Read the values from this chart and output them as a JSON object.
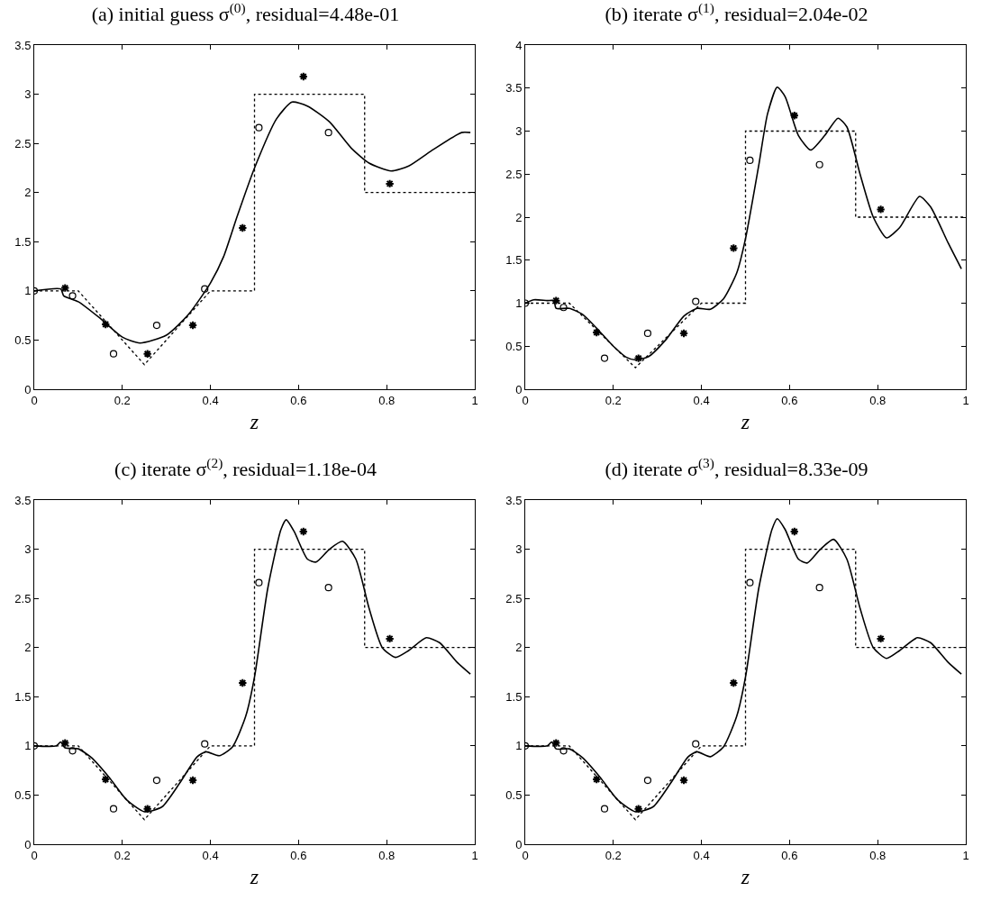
{
  "chart_data": [
    {
      "type": "line",
      "title": "(a) initial guess σ$^{(0)}$, residual=4.48e-01",
      "xlabel": "z",
      "xlim": [
        0,
        1
      ],
      "xticks": [
        0,
        0.2,
        0.4,
        0.6,
        0.8,
        1
      ],
      "ylim": [
        0,
        3.5
      ],
      "yticks": [
        0,
        0.5,
        1,
        1.5,
        2,
        2.5,
        3,
        3.5
      ],
      "grid": false,
      "series": [
        {
          "type": "line",
          "line_style": "dotted",
          "color": "#000000",
          "x": [
            0,
            0.1,
            0.25,
            0.4,
            0.5,
            0.5,
            0.75,
            0.75,
            1
          ],
          "values": [
            1,
            1,
            0.25,
            1,
            1,
            3,
            3,
            2,
            2
          ]
        },
        {
          "type": "line",
          "line_style": "solid",
          "color": "#000000",
          "x": [
            0,
            0.06,
            0.067,
            0.1,
            0.15,
            0.2,
            0.24,
            0.3,
            0.35,
            0.4,
            0.43,
            0.46,
            0.5,
            0.55,
            0.585,
            0.62,
            0.67,
            0.72,
            0.76,
            0.81,
            0.85,
            0.9,
            0.97,
            0.99
          ],
          "values": [
            1.0,
            1.02,
            0.95,
            0.89,
            0.72,
            0.53,
            0.47,
            0.55,
            0.76,
            1.08,
            1.35,
            1.75,
            2.25,
            2.75,
            2.92,
            2.88,
            2.72,
            2.45,
            2.3,
            2.22,
            2.27,
            2.42,
            2.61,
            2.61
          ]
        },
        {
          "type": "scatter",
          "marker": "circle",
          "color": "#000000",
          "x": [
            0,
            0.087,
            0.18,
            0.278,
            0.387,
            0.51,
            0.668
          ],
          "values": [
            1.0,
            0.95,
            0.36,
            0.65,
            1.02,
            2.66,
            2.61
          ]
        },
        {
          "type": "scatter",
          "marker": "cross",
          "color": "#000000",
          "x": [
            0.07,
            0.162,
            0.257,
            0.36,
            0.473,
            0.611,
            0.807
          ],
          "values": [
            1.03,
            0.66,
            0.36,
            0.65,
            1.64,
            3.18,
            2.09
          ]
        }
      ]
    },
    {
      "type": "line",
      "title": "(b) iterate σ$^{(1)}$, residual=2.04e-02",
      "xlabel": "z",
      "xlim": [
        0,
        1
      ],
      "xticks": [
        0,
        0.2,
        0.4,
        0.6,
        0.8,
        1
      ],
      "ylim": [
        0,
        4
      ],
      "yticks": [
        0,
        0.5,
        1,
        1.5,
        2,
        2.5,
        3,
        3.5,
        4
      ],
      "grid": false,
      "series": [
        {
          "type": "scatter",
          "marker": "circle",
          "color": "#000000",
          "x": [
            0,
            0.087,
            0.18,
            0.278,
            0.387,
            0.51,
            0.668
          ],
          "values": [
            1.0,
            0.95,
            0.36,
            0.65,
            1.02,
            2.66,
            2.61
          ]
        },
        {
          "type": "scatter",
          "marker": "cross",
          "color": "#000000",
          "x": [
            0.07,
            0.162,
            0.257,
            0.36,
            0.473,
            0.611,
            0.807
          ],
          "values": [
            1.03,
            0.66,
            0.36,
            0.65,
            1.64,
            3.18,
            2.09
          ]
        },
        {
          "type": "line",
          "line_style": "dotted",
          "color": "#000000",
          "x": [
            0,
            0.1,
            0.25,
            0.4,
            0.5,
            0.5,
            0.75,
            0.75,
            1
          ],
          "values": [
            1,
            1,
            0.25,
            1,
            1,
            3,
            3,
            2,
            2
          ]
        },
        {
          "type": "line",
          "line_style": "solid",
          "color": "#000000",
          "x": [
            0,
            0.02,
            0.05,
            0.065,
            0.07,
            0.1,
            0.13,
            0.16,
            0.2,
            0.23,
            0.25,
            0.28,
            0.32,
            0.36,
            0.39,
            0.42,
            0.45,
            0.48,
            0.5,
            0.53,
            0.55,
            0.572,
            0.59,
            0.62,
            0.648,
            0.68,
            0.71,
            0.73,
            0.76,
            0.79,
            0.82,
            0.85,
            0.895,
            0.92,
            0.96,
            0.99
          ],
          "values": [
            1.0,
            1.04,
            1.03,
            1.03,
            0.94,
            0.94,
            0.87,
            0.72,
            0.5,
            0.37,
            0.34,
            0.38,
            0.58,
            0.85,
            0.94,
            0.93,
            1.05,
            1.35,
            1.75,
            2.6,
            3.2,
            3.51,
            3.4,
            2.95,
            2.78,
            2.95,
            3.15,
            3.05,
            2.5,
            2.0,
            1.76,
            1.88,
            2.24,
            2.12,
            1.7,
            1.4
          ]
        }
      ]
    },
    {
      "type": "line",
      "title": "(c) iterate σ$^{(2)}$, residual=1.18e-04",
      "xlabel": "z",
      "xlim": [
        0,
        1
      ],
      "xticks": [
        0,
        0.2,
        0.4,
        0.6,
        0.8,
        1
      ],
      "ylim": [
        0,
        3.5
      ],
      "yticks": [
        0,
        0.5,
        1,
        1.5,
        2,
        2.5,
        3,
        3.5
      ],
      "grid": false,
      "series": [
        {
          "type": "line",
          "line_style": "dotted",
          "color": "#000000",
          "x": [
            0,
            0.1,
            0.25,
            0.4,
            0.5,
            0.5,
            0.75,
            0.75,
            1
          ],
          "values": [
            1,
            1,
            0.25,
            1,
            1,
            3,
            3,
            2,
            2
          ]
        },
        {
          "type": "line",
          "line_style": "solid",
          "color": "#000000",
          "x": [
            0,
            0.05,
            0.06,
            0.07,
            0.1,
            0.13,
            0.17,
            0.21,
            0.25,
            0.29,
            0.33,
            0.37,
            0.39,
            0.42,
            0.45,
            0.48,
            0.5,
            0.53,
            0.56,
            0.572,
            0.59,
            0.62,
            0.64,
            0.67,
            0.7,
            0.73,
            0.76,
            0.79,
            0.82,
            0.85,
            0.89,
            0.92,
            0.96,
            0.99
          ],
          "values": [
            1.0,
            1.0,
            1.04,
            0.98,
            0.97,
            0.88,
            0.68,
            0.45,
            0.33,
            0.38,
            0.62,
            0.89,
            0.94,
            0.9,
            0.99,
            1.3,
            1.7,
            2.6,
            3.2,
            3.3,
            3.18,
            2.9,
            2.87,
            3.0,
            3.08,
            2.9,
            2.4,
            2.0,
            1.9,
            1.97,
            2.1,
            2.05,
            1.85,
            1.73
          ]
        },
        {
          "type": "scatter",
          "marker": "circle",
          "color": "#000000",
          "x": [
            0,
            0.087,
            0.18,
            0.278,
            0.387,
            0.51,
            0.668
          ],
          "values": [
            1.0,
            0.95,
            0.36,
            0.65,
            1.02,
            2.66,
            2.61
          ]
        },
        {
          "type": "scatter",
          "marker": "cross",
          "color": "#000000",
          "x": [
            0.07,
            0.162,
            0.257,
            0.36,
            0.473,
            0.611,
            0.807
          ],
          "values": [
            1.03,
            0.66,
            0.36,
            0.65,
            1.64,
            3.18,
            2.09
          ]
        }
      ]
    },
    {
      "type": "line",
      "title": "(d) iterate σ$^{(3)}$, residual=8.33e-09",
      "xlabel": "z",
      "xlim": [
        0,
        1
      ],
      "xticks": [
        0,
        0.2,
        0.4,
        0.6,
        0.8,
        1
      ],
      "ylim": [
        0,
        3.5
      ],
      "yticks": [
        0,
        0.5,
        1,
        1.5,
        2,
        2.5,
        3,
        3.5
      ],
      "grid": false,
      "series": [
        {
          "type": "line",
          "line_style": "dotted",
          "color": "#000000",
          "x": [
            0,
            0.1,
            0.25,
            0.4,
            0.5,
            0.5,
            0.75,
            0.75,
            1
          ],
          "values": [
            1,
            1,
            0.25,
            1,
            1,
            3,
            3,
            2,
            2
          ]
        },
        {
          "type": "line",
          "line_style": "solid",
          "color": "#000000",
          "x": [
            0,
            0.05,
            0.06,
            0.07,
            0.1,
            0.13,
            0.17,
            0.21,
            0.25,
            0.29,
            0.33,
            0.37,
            0.39,
            0.42,
            0.45,
            0.48,
            0.5,
            0.53,
            0.56,
            0.572,
            0.59,
            0.62,
            0.64,
            0.67,
            0.7,
            0.73,
            0.76,
            0.79,
            0.82,
            0.85,
            0.89,
            0.92,
            0.96,
            0.99
          ],
          "values": [
            1.0,
            1.0,
            1.04,
            0.97,
            0.97,
            0.88,
            0.68,
            0.45,
            0.33,
            0.38,
            0.62,
            0.89,
            0.94,
            0.89,
            0.99,
            1.3,
            1.7,
            2.6,
            3.2,
            3.31,
            3.2,
            2.9,
            2.86,
            3.0,
            3.1,
            2.9,
            2.4,
            2.0,
            1.89,
            1.97,
            2.1,
            2.05,
            1.85,
            1.73
          ]
        },
        {
          "type": "scatter",
          "marker": "circle",
          "color": "#000000",
          "x": [
            0,
            0.087,
            0.18,
            0.278,
            0.387,
            0.51,
            0.668
          ],
          "values": [
            1.0,
            0.95,
            0.36,
            0.65,
            1.02,
            2.66,
            2.61
          ]
        },
        {
          "type": "scatter",
          "marker": "cross",
          "color": "#000000",
          "x": [
            0.07,
            0.162,
            0.257,
            0.36,
            0.473,
            0.611,
            0.807
          ],
          "values": [
            1.03,
            0.66,
            0.36,
            0.65,
            1.64,
            3.18,
            2.09
          ]
        }
      ]
    }
  ]
}
